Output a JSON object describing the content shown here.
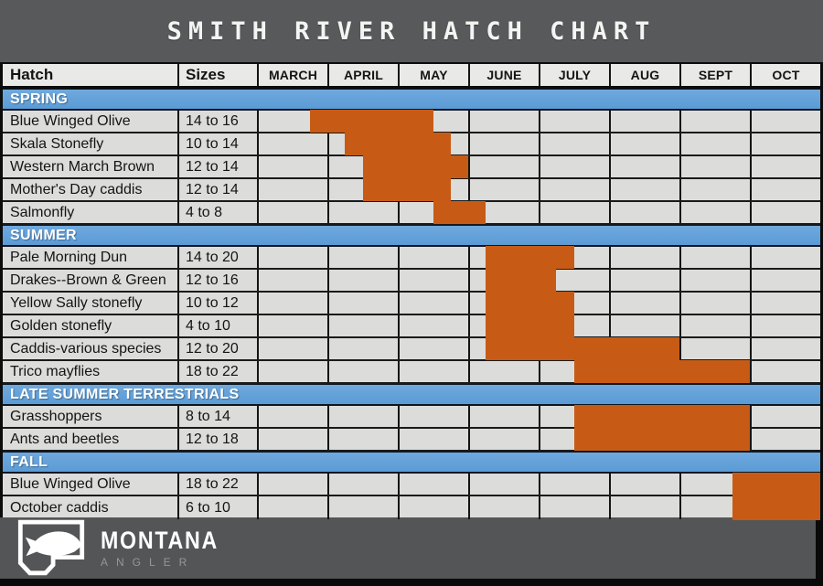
{
  "title": "SMITH RIVER HATCH CHART",
  "colors": {
    "bar": "#c75b16",
    "section_band": "#5b9bd5",
    "panel_gray": "#58595b",
    "cell_gray": "#dcdcda",
    "header_gray": "#e9e9e7"
  },
  "footer": {
    "brand_primary": "MONTANA",
    "brand_secondary": "ANGLER",
    "logo_icons": [
      "montana-state-icon",
      "trout-fish-icon"
    ]
  },
  "chart_data": {
    "type": "gantt",
    "title": "SMITH RIVER HATCH CHART",
    "hatch_header": "Hatch",
    "sizes_header": "Sizes",
    "months": [
      "MARCH",
      "APRIL",
      "MAY",
      "JUNE",
      "JULY",
      "AUG",
      "SEPT",
      "OCT"
    ],
    "bar_units": "months, 0 = start of March, 8 = end of October",
    "sections": [
      {
        "label": "SPRING",
        "rows": [
          {
            "name": "Blue Winged Olive",
            "sizes": "14 to 16",
            "bar_start": 0.75,
            "bar_end": 2.5
          },
          {
            "name": "Skala Stonefly",
            "sizes": "10 to 14",
            "bar_start": 1.25,
            "bar_end": 2.75
          },
          {
            "name": "Western March Brown",
            "sizes": "12 to 14",
            "bar_start": 1.5,
            "bar_end": 3.0
          },
          {
            "name": "Mother's Day caddis",
            "sizes": "12 to 14",
            "bar_start": 1.5,
            "bar_end": 2.75
          },
          {
            "name": "Salmonfly",
            "sizes": "4 to 8",
            "bar_start": 2.5,
            "bar_end": 3.25
          }
        ]
      },
      {
        "label": "SUMMER",
        "rows": [
          {
            "name": "Pale Morning Dun",
            "sizes": "14 to 20",
            "bar_start": 3.25,
            "bar_end": 4.5
          },
          {
            "name": "Drakes--Brown & Green",
            "sizes": "12 to 16",
            "bar_start": 3.25,
            "bar_end": 4.25
          },
          {
            "name": "Yellow Sally stonefly",
            "sizes": "10 to 12",
            "bar_start": 3.25,
            "bar_end": 4.5
          },
          {
            "name": "Golden stonefly",
            "sizes": "4 to 10",
            "bar_start": 3.25,
            "bar_end": 4.5
          },
          {
            "name": "Caddis-various species",
            "sizes": "12 to 20",
            "bar_start": 3.25,
            "bar_end": 6.0
          },
          {
            "name": "Trico mayflies",
            "sizes": "18 to 22",
            "bar_start": 4.5,
            "bar_end": 7.0
          }
        ]
      },
      {
        "label": "LATE SUMMER TERRESTRIALS",
        "rows": [
          {
            "name": "Grasshoppers",
            "sizes": "8 to 14",
            "bar_start": 4.5,
            "bar_end": 7.0
          },
          {
            "name": "Ants and beetles",
            "sizes": "12 to 18",
            "bar_start": 4.5,
            "bar_end": 7.0
          }
        ]
      },
      {
        "label": "FALL",
        "rows": [
          {
            "name": "Blue Winged Olive",
            "sizes": "18 to 22",
            "bar_start": 6.75,
            "bar_end": 8.0
          },
          {
            "name": "October caddis",
            "sizes": "6 to 10",
            "bar_start": 6.75,
            "bar_end": 8.0
          }
        ]
      }
    ]
  }
}
